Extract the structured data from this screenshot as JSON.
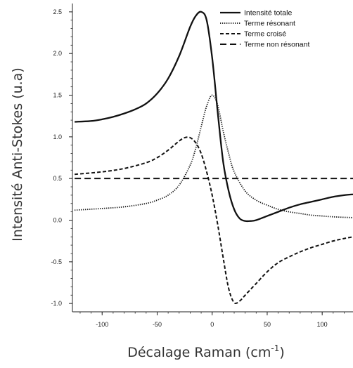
{
  "chart_data": {
    "type": "line",
    "xlabel": "Décalage Raman (cm",
    "xlabel_sup": "-1",
    "xlabel_end": ")",
    "ylabel": "Intensité Anti-Stokes (u.a)",
    "xlim": [
      -127,
      128
    ],
    "ylim": [
      -1.1,
      2.6
    ],
    "xticks": [
      -100,
      -50,
      0,
      50,
      100
    ],
    "yticks": [
      -1.0,
      -0.5,
      0.0,
      0.5,
      1.0,
      1.5,
      2.0,
      2.5
    ],
    "legend_position": "top-right",
    "grid": false,
    "series": [
      {
        "name": "Intensité totale",
        "style": "solid",
        "x": [
          -125,
          -110,
          -100,
          -90,
          -80,
          -70,
          -60,
          -50,
          -40,
          -30,
          -20,
          -15,
          -10,
          -5,
          0,
          5,
          10,
          15,
          20,
          25,
          30,
          35,
          40,
          50,
          60,
          70,
          80,
          90,
          100,
          110,
          120,
          128
        ],
        "y": [
          1.18,
          1.19,
          1.21,
          1.24,
          1.28,
          1.33,
          1.4,
          1.52,
          1.7,
          1.97,
          2.32,
          2.45,
          2.5,
          2.4,
          1.95,
          1.3,
          0.7,
          0.35,
          0.13,
          0.02,
          -0.01,
          -0.01,
          0.0,
          0.05,
          0.1,
          0.15,
          0.19,
          0.22,
          0.25,
          0.28,
          0.3,
          0.31
        ]
      },
      {
        "name": "Terme résonant",
        "style": "dotted",
        "x": [
          -125,
          -100,
          -80,
          -60,
          -50,
          -40,
          -30,
          -20,
          -15,
          -10,
          -5,
          0,
          5,
          10,
          15,
          20,
          30,
          40,
          50,
          60,
          70,
          80,
          90,
          100,
          110,
          128
        ],
        "y": [
          0.12,
          0.14,
          0.16,
          0.2,
          0.24,
          0.3,
          0.42,
          0.66,
          0.86,
          1.12,
          1.37,
          1.5,
          1.38,
          1.07,
          0.8,
          0.58,
          0.35,
          0.24,
          0.18,
          0.13,
          0.1,
          0.08,
          0.06,
          0.05,
          0.04,
          0.03
        ]
      },
      {
        "name": "Terme croisé",
        "style": "dashed",
        "x": [
          -125,
          -100,
          -80,
          -60,
          -50,
          -40,
          -30,
          -25,
          -20,
          -15,
          -10,
          -5,
          0,
          5,
          10,
          15,
          20,
          25,
          30,
          40,
          50,
          60,
          70,
          80,
          90,
          100,
          110,
          120,
          128
        ],
        "y": [
          0.55,
          0.58,
          0.62,
          0.69,
          0.75,
          0.84,
          0.95,
          0.99,
          0.99,
          0.93,
          0.8,
          0.58,
          0.3,
          -0.05,
          -0.45,
          -0.82,
          -0.99,
          -0.97,
          -0.9,
          -0.76,
          -0.62,
          -0.51,
          -0.44,
          -0.38,
          -0.33,
          -0.29,
          -0.25,
          -0.22,
          -0.2
        ]
      },
      {
        "name": "Terme non résonant",
        "style": "longdash",
        "x": [
          -125,
          128
        ],
        "y": [
          0.5,
          0.5
        ]
      }
    ]
  }
}
